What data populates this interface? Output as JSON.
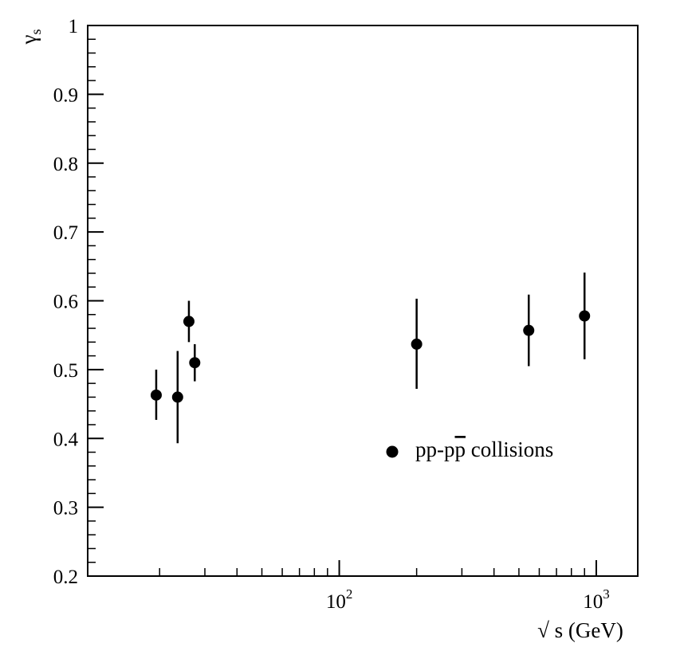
{
  "chart_data": {
    "type": "scatter",
    "title": "",
    "xlabel": "√ s (GeV)",
    "ylabel_main": "γ",
    "ylabel_sub": "s",
    "x_scale": "log",
    "xlim": [
      10.5,
      1450
    ],
    "ylim": [
      0.2,
      1.0
    ],
    "x_ticks": [
      {
        "value": 100,
        "base": "10",
        "exp": "2"
      },
      {
        "value": 1000,
        "base": "10",
        "exp": "3"
      }
    ],
    "y_ticks": [
      "0.2",
      "0.3",
      "0.4",
      "0.5",
      "0.6",
      "0.7",
      "0.8",
      "0.9",
      "1"
    ],
    "grid": false,
    "legend": {
      "placement": "center-right",
      "entries": [
        {
          "label_prefix": "pp-p",
          "label_overbar": "p",
          "label_suffix": " collisions",
          "marker": "filled-circle"
        }
      ]
    },
    "series": [
      {
        "marker": "filled-circle",
        "points": [
          {
            "x": 19.4,
            "y": 0.463,
            "ylo": 0.427,
            "yhi": 0.5
          },
          {
            "x": 23.5,
            "y": 0.46,
            "ylo": 0.393,
            "yhi": 0.527
          },
          {
            "x": 26.0,
            "y": 0.57,
            "ylo": 0.54,
            "yhi": 0.6
          },
          {
            "x": 27.4,
            "y": 0.51,
            "ylo": 0.483,
            "yhi": 0.537
          },
          {
            "x": 200,
            "y": 0.537,
            "ylo": 0.472,
            "yhi": 0.603
          },
          {
            "x": 546,
            "y": 0.557,
            "ylo": 0.505,
            "yhi": 0.609
          },
          {
            "x": 900,
            "y": 0.578,
            "ylo": 0.515,
            "yhi": 0.641
          }
        ]
      }
    ]
  }
}
